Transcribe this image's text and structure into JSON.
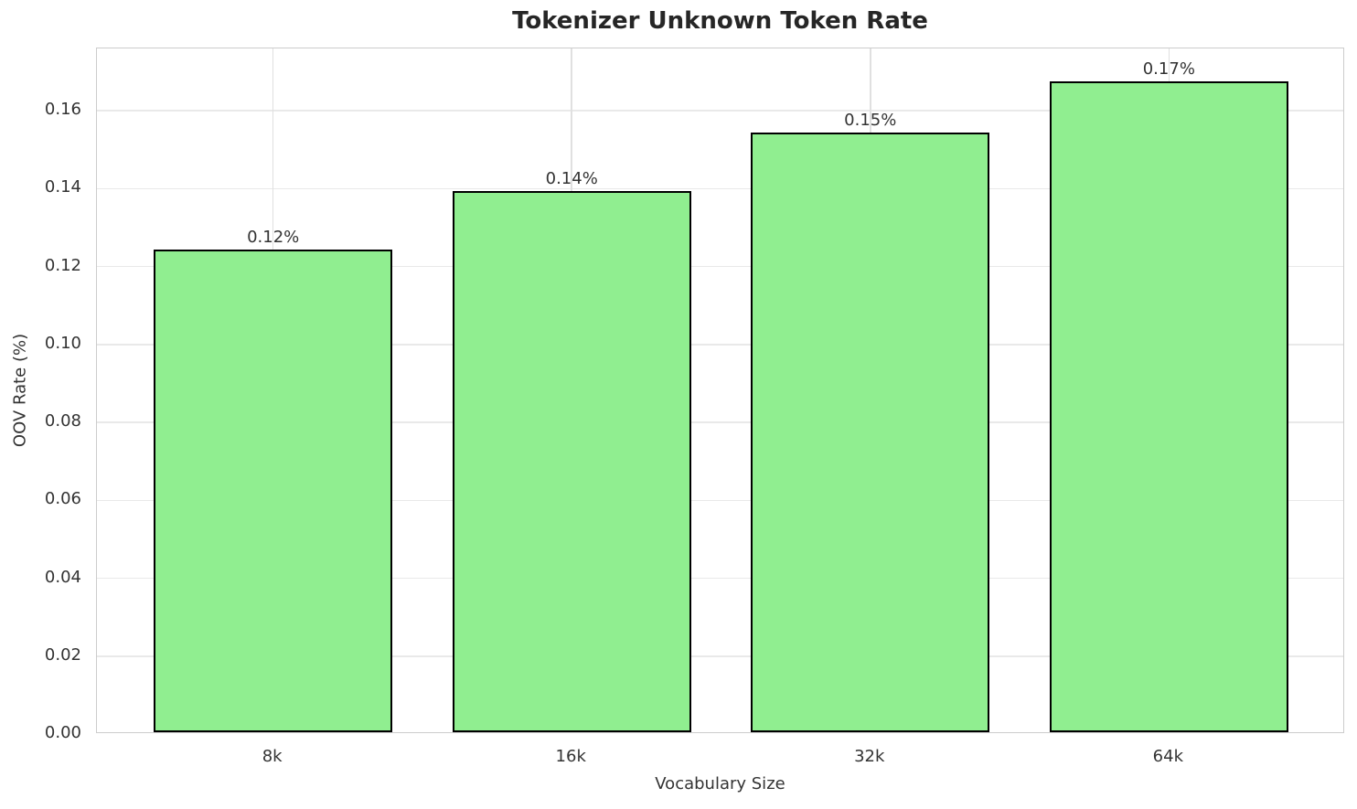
{
  "chart_data": {
    "type": "bar",
    "title": "Tokenizer Unknown Token Rate",
    "xlabel": "Vocabulary Size",
    "ylabel": "OOV Rate (%)",
    "categories": [
      "8k",
      "16k",
      "32k",
      "64k"
    ],
    "values": [
      0.124,
      0.139,
      0.154,
      0.167
    ],
    "value_labels": [
      "0.12%",
      "0.14%",
      "0.15%",
      "0.17%"
    ],
    "yticks": [
      "0.00",
      "0.02",
      "0.04",
      "0.06",
      "0.08",
      "0.10",
      "0.12",
      "0.14",
      "0.16"
    ],
    "ylim": [
      0,
      0.176
    ],
    "grid": true,
    "legend": "none",
    "bar_color": "#90EE90",
    "bar_edge_color": "#000000"
  }
}
